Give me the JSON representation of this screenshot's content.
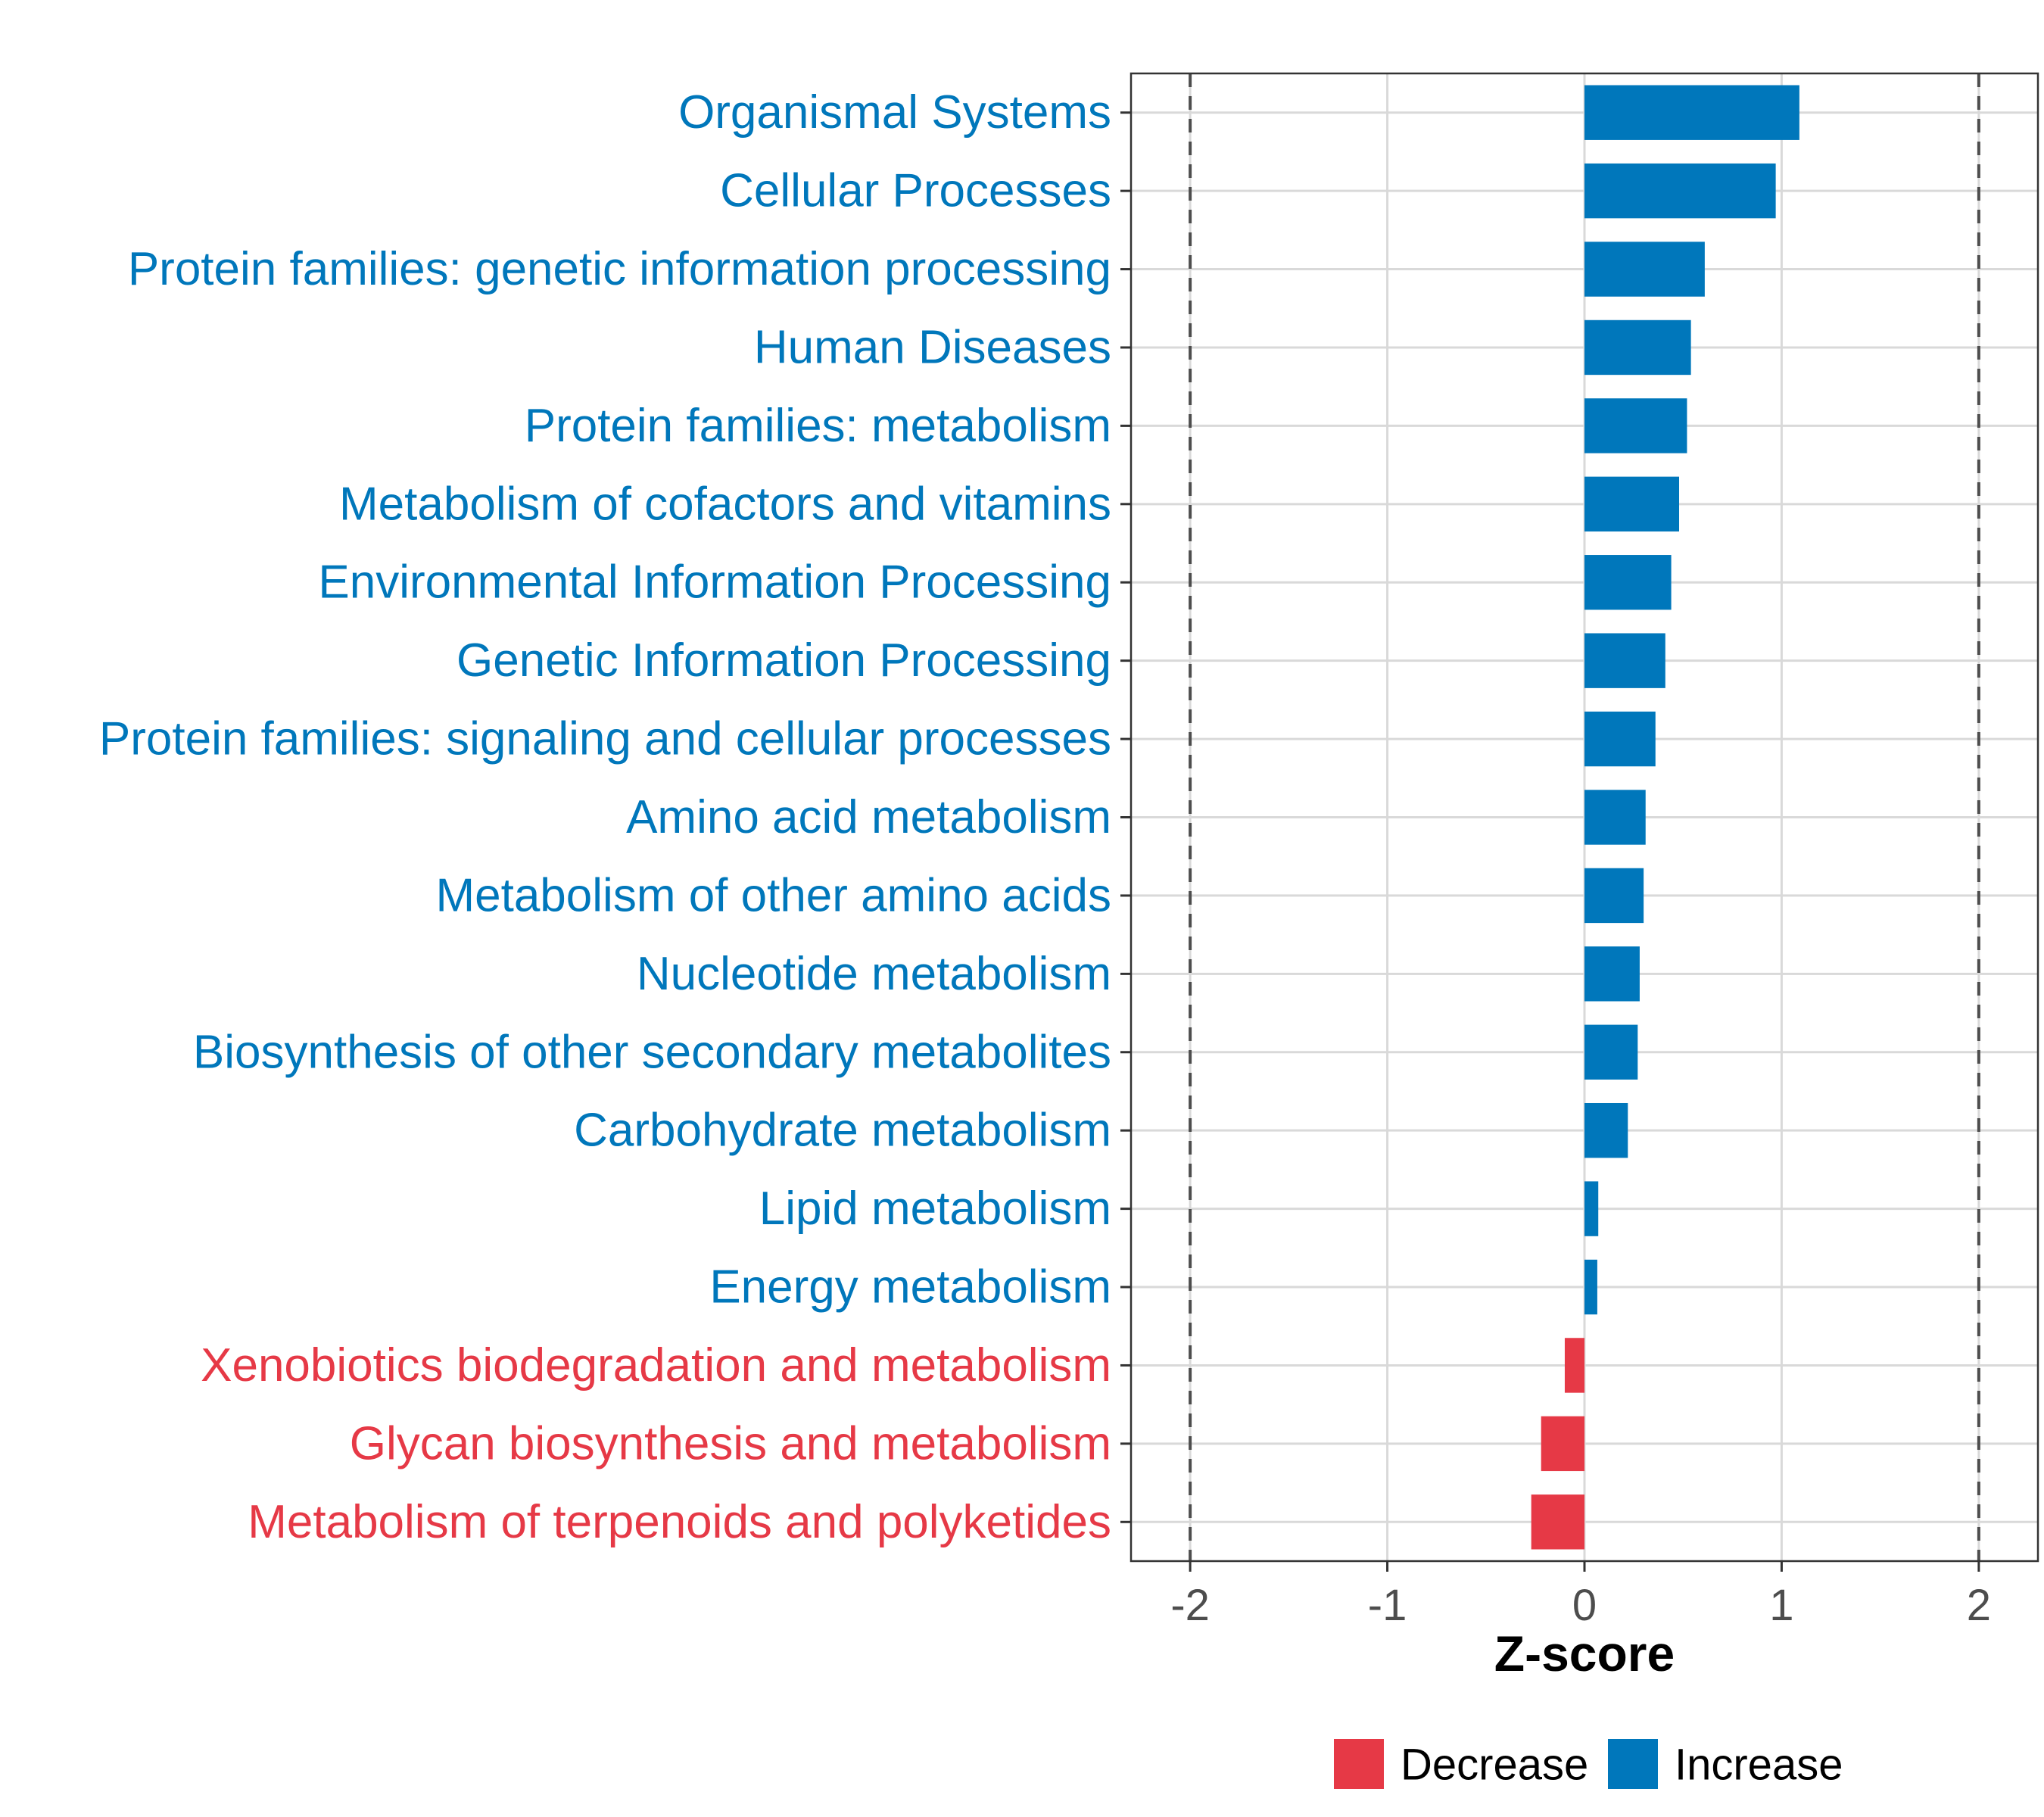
{
  "chart_data": {
    "type": "bar",
    "orientation": "horizontal",
    "title": "",
    "xlabel": "Z-score",
    "ylabel": "",
    "xlim": [
      -2.3,
      2.3
    ],
    "xticks": [
      -2,
      -1,
      0,
      1,
      2
    ],
    "xtick_labels": [
      "-2",
      "-1",
      "0",
      "1",
      "2"
    ],
    "reference_lines": [
      -2,
      2
    ],
    "grid": true,
    "categories": [
      "Organismal Systems",
      "Cellular Processes",
      "Protein families: genetic information processing",
      "Human Diseases",
      "Protein families: metabolism",
      "Metabolism of cofactors and vitamins",
      "Environmental Information Processing",
      "Genetic Information Processing",
      "Protein families: signaling and cellular processes",
      "Amino acid metabolism",
      "Metabolism of other amino acids",
      "Nucleotide metabolism",
      "Biosynthesis of other secondary metabolites",
      "Carbohydrate metabolism",
      "Lipid metabolism",
      "Energy metabolism",
      "Xenobiotics biodegradation and metabolism",
      "Glycan biosynthesis and metabolism",
      "Metabolism of terpenoids and polyketides"
    ],
    "values": [
      1.09,
      0.97,
      0.61,
      0.54,
      0.52,
      0.48,
      0.44,
      0.41,
      0.36,
      0.31,
      0.3,
      0.28,
      0.27,
      0.22,
      0.07,
      0.065,
      -0.1,
      -0.22,
      -0.27
    ],
    "groups": [
      "Increase",
      "Increase",
      "Increase",
      "Increase",
      "Increase",
      "Increase",
      "Increase",
      "Increase",
      "Increase",
      "Increase",
      "Increase",
      "Increase",
      "Increase",
      "Increase",
      "Increase",
      "Increase",
      "Decrease",
      "Decrease",
      "Decrease"
    ],
    "legend": {
      "position": "bottom",
      "entries": [
        {
          "label": "Decrease",
          "color": "#E63946"
        },
        {
          "label": "Increase",
          "color": "#0077BB"
        }
      ]
    },
    "colors": {
      "Decrease": "#E63946",
      "Increase": "#0077BB"
    }
  }
}
